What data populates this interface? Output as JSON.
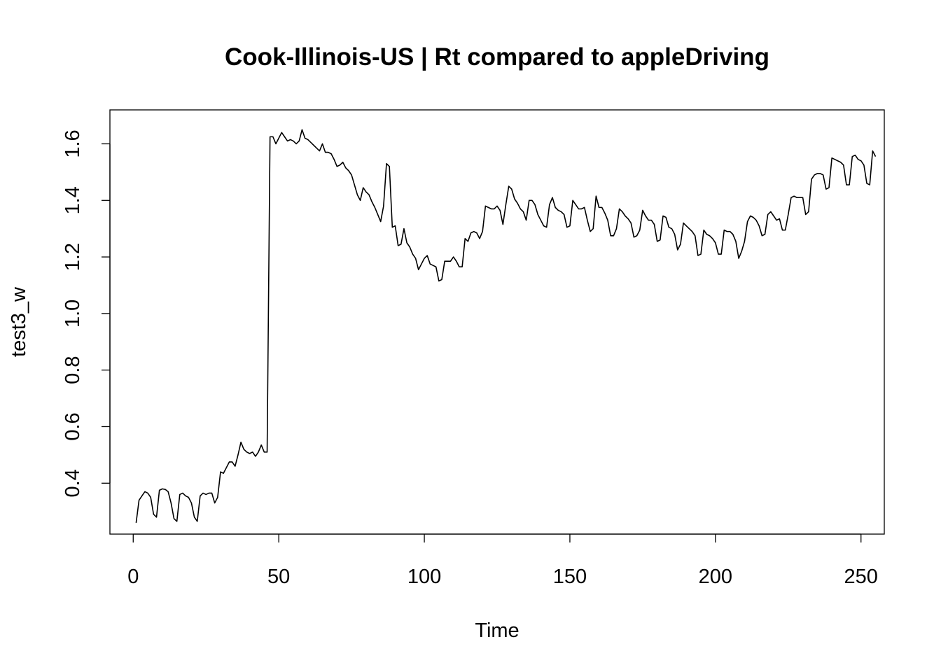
{
  "chart_data": {
    "type": "line",
    "title": "Cook-Illinois-US | Rt compared to appleDriving",
    "xlabel": "Time",
    "ylabel": "test3_w",
    "xlim": [
      -8,
      258
    ],
    "ylim": [
      0.22,
      1.72
    ],
    "x_ticks": [
      0,
      50,
      100,
      150,
      200,
      250
    ],
    "x_tick_labels": [
      "0",
      "50",
      "100",
      "150",
      "200",
      "250"
    ],
    "y_ticks": [
      0.4,
      0.6,
      0.8,
      1.0,
      1.2,
      1.4,
      1.6
    ],
    "y_tick_labels": [
      "0.4",
      "0.6",
      "0.8",
      "1.0",
      "1.2",
      "1.4",
      "1.6"
    ],
    "grid": false,
    "legend": "none",
    "series": [
      {
        "color": "#000000",
        "x_start": 1,
        "x_step": 1,
        "values": [
          0.26,
          0.34,
          0.355,
          0.37,
          0.365,
          0.35,
          0.29,
          0.28,
          0.375,
          0.38,
          0.378,
          0.37,
          0.33,
          0.275,
          0.265,
          0.36,
          0.365,
          0.355,
          0.35,
          0.33,
          0.28,
          0.265,
          0.355,
          0.365,
          0.36,
          0.365,
          0.365,
          0.33,
          0.35,
          0.44,
          0.435,
          0.455,
          0.475,
          0.475,
          0.46,
          0.5,
          0.545,
          0.52,
          0.51,
          0.505,
          0.51,
          0.495,
          0.51,
          0.535,
          0.51,
          0.51,
          1.625,
          1.625,
          1.6,
          1.62,
          1.64,
          1.625,
          1.61,
          1.615,
          1.61,
          1.6,
          1.61,
          1.65,
          1.62,
          1.615,
          1.605,
          1.595,
          1.585,
          1.575,
          1.6,
          1.57,
          1.57,
          1.565,
          1.545,
          1.52,
          1.525,
          1.535,
          1.515,
          1.505,
          1.49,
          1.455,
          1.42,
          1.4,
          1.445,
          1.43,
          1.42,
          1.395,
          1.375,
          1.35,
          1.325,
          1.38,
          1.53,
          1.52,
          1.305,
          1.31,
          1.24,
          1.245,
          1.3,
          1.25,
          1.235,
          1.21,
          1.195,
          1.155,
          1.175,
          1.195,
          1.205,
          1.175,
          1.17,
          1.165,
          1.115,
          1.12,
          1.185,
          1.185,
          1.185,
          1.2,
          1.185,
          1.165,
          1.165,
          1.265,
          1.255,
          1.285,
          1.29,
          1.285,
          1.265,
          1.29,
          1.38,
          1.375,
          1.37,
          1.37,
          1.38,
          1.365,
          1.315,
          1.385,
          1.45,
          1.44,
          1.405,
          1.39,
          1.37,
          1.36,
          1.33,
          1.4,
          1.4,
          1.385,
          1.35,
          1.33,
          1.31,
          1.305,
          1.385,
          1.41,
          1.375,
          1.365,
          1.36,
          1.35,
          1.305,
          1.31,
          1.4,
          1.385,
          1.37,
          1.37,
          1.375,
          1.33,
          1.29,
          1.3,
          1.415,
          1.375,
          1.375,
          1.355,
          1.33,
          1.275,
          1.275,
          1.3,
          1.37,
          1.36,
          1.345,
          1.335,
          1.32,
          1.27,
          1.275,
          1.295,
          1.365,
          1.345,
          1.33,
          1.33,
          1.315,
          1.255,
          1.26,
          1.345,
          1.34,
          1.305,
          1.3,
          1.28,
          1.225,
          1.245,
          1.32,
          1.31,
          1.3,
          1.29,
          1.275,
          1.205,
          1.21,
          1.295,
          1.28,
          1.275,
          1.265,
          1.25,
          1.21,
          1.21,
          1.295,
          1.29,
          1.29,
          1.28,
          1.255,
          1.195,
          1.22,
          1.255,
          1.325,
          1.345,
          1.34,
          1.33,
          1.31,
          1.275,
          1.28,
          1.35,
          1.36,
          1.345,
          1.33,
          1.335,
          1.295,
          1.295,
          1.35,
          1.41,
          1.415,
          1.41,
          1.41,
          1.41,
          1.35,
          1.36,
          1.475,
          1.49,
          1.495,
          1.495,
          1.49,
          1.44,
          1.445,
          1.55,
          1.545,
          1.54,
          1.535,
          1.525,
          1.455,
          1.455,
          1.555,
          1.56,
          1.545,
          1.54,
          1.525,
          1.46,
          1.455,
          1.575,
          1.555
        ]
      }
    ]
  }
}
